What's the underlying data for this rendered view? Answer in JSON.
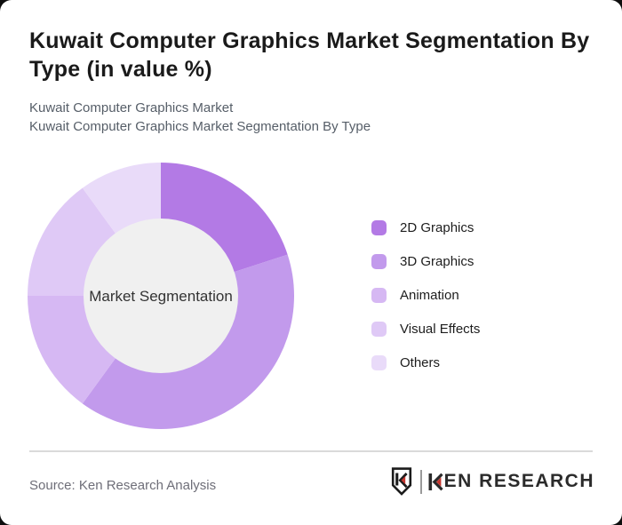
{
  "page": {
    "background": "#0e0e0e",
    "card_background": "#ffffff"
  },
  "header": {
    "title_line1": "Kuwait Computer Graphics Market Segmentation By",
    "title_line2": "Type (in value %)",
    "subtitle_line1": "Kuwait Computer Graphics Market",
    "subtitle_line2": "Kuwait Computer Graphics Market Segmentation By Type"
  },
  "chart_data": {
    "type": "pie",
    "subtype": "donut",
    "title": "Kuwait Computer Graphics Market Segmentation By Type (in value %)",
    "center_label": "Market Segmentation",
    "categories": [
      "2D Graphics",
      "3D Graphics",
      "Animation",
      "Visual Effects",
      "Others"
    ],
    "values": [
      20,
      40,
      15,
      15,
      10
    ],
    "unit": "%",
    "colors": [
      "#b37ae5",
      "#c29aec",
      "#d6b8f3",
      "#dfc9f6",
      "#e9dbf9"
    ],
    "start_angle_deg": 0,
    "direction": "clockwise",
    "inner_radius_ratio": 0.58,
    "inner_circle_color": "#f0f0f0",
    "center_label_color": "#333333",
    "legend_position": "right"
  },
  "footer": {
    "source": "Source: Ken Research Analysis",
    "brand": {
      "name": "KEN RESEARCH",
      "wordmark_rest": "EN RESEARCH",
      "accent_red": "#c7372f",
      "dark": "#1c1c1c"
    }
  }
}
